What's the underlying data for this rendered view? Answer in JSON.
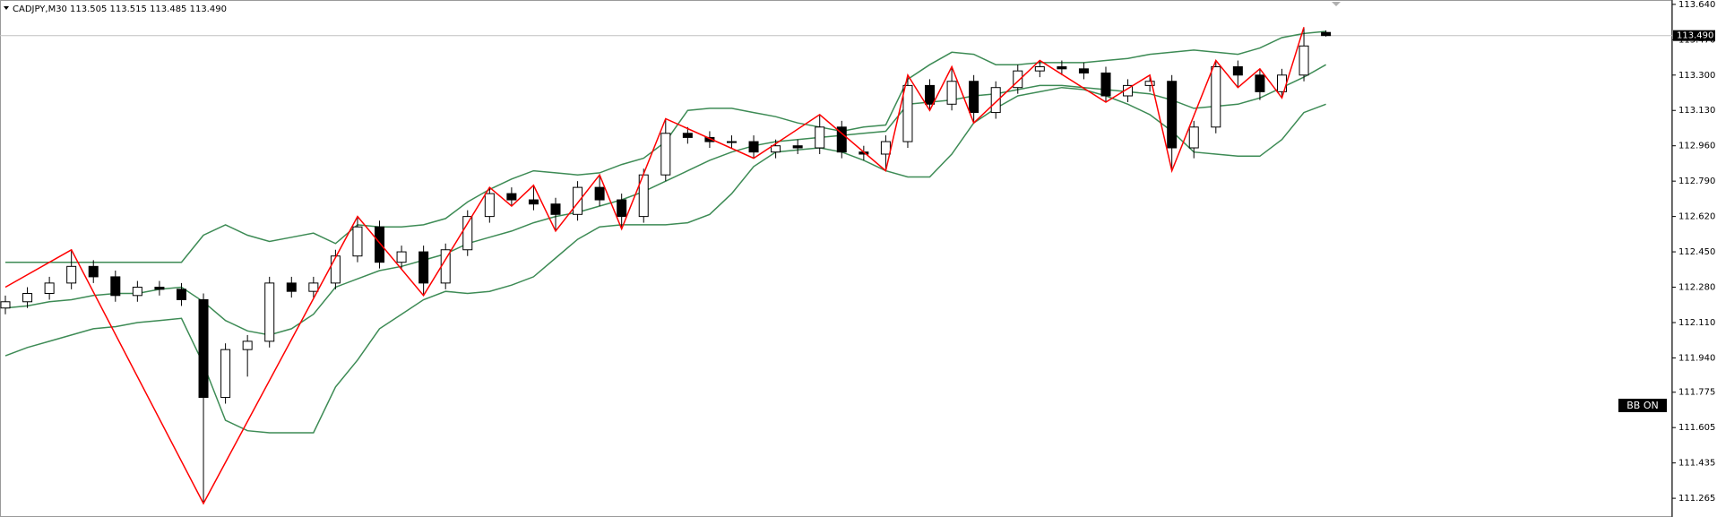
{
  "header": {
    "symbol": "CADJPY,M30",
    "quote": "113.505 113.515 113.485 113.490"
  },
  "chart_data": {
    "type": "candlestick",
    "open": [
      112.18,
      112.21,
      112.25,
      112.3,
      112.38,
      112.33,
      112.24,
      112.28,
      112.27,
      112.22,
      111.75,
      111.98,
      112.02,
      112.3,
      112.26,
      112.3,
      112.43,
      112.57,
      112.4,
      112.45,
      112.3,
      112.46,
      112.62,
      112.73,
      112.7,
      112.68,
      112.63,
      112.76,
      112.7,
      112.62,
      112.82,
      113.02,
      113.0,
      112.98,
      112.98,
      112.93,
      112.96,
      112.95,
      113.05,
      112.93,
      112.92,
      112.98,
      113.25,
      113.16,
      113.27,
      113.12,
      113.24,
      113.32,
      113.34,
      113.33,
      113.31,
      113.2,
      113.25,
      113.27,
      112.95,
      113.05,
      113.34,
      113.3,
      113.22,
      113.3,
      113.505
    ],
    "high": [
      112.24,
      112.28,
      112.33,
      112.46,
      112.41,
      112.36,
      112.31,
      112.31,
      112.3,
      112.25,
      112.01,
      112.05,
      112.33,
      112.33,
      112.33,
      112.46,
      112.62,
      112.6,
      112.48,
      112.48,
      112.49,
      112.65,
      112.76,
      112.76,
      112.77,
      112.71,
      112.79,
      112.82,
      112.73,
      112.85,
      113.09,
      113.05,
      113.03,
      113.01,
      113.01,
      112.99,
      112.99,
      113.11,
      113.08,
      112.96,
      113.01,
      113.3,
      113.28,
      113.34,
      113.3,
      113.27,
      113.35,
      113.37,
      113.37,
      113.36,
      113.34,
      113.28,
      113.3,
      113.3,
      113.08,
      113.37,
      113.37,
      113.33,
      113.33,
      113.53,
      113.515
    ],
    "low": [
      112.15,
      112.18,
      112.22,
      112.27,
      112.3,
      112.21,
      112.21,
      112.24,
      112.19,
      111.24,
      111.72,
      111.85,
      111.99,
      112.23,
      112.23,
      112.27,
      112.4,
      112.37,
      112.37,
      112.24,
      112.27,
      112.43,
      112.59,
      112.67,
      112.65,
      112.55,
      112.6,
      112.67,
      112.56,
      112.59,
      112.79,
      112.97,
      112.95,
      112.95,
      112.9,
      112.9,
      112.92,
      112.92,
      112.9,
      112.89,
      112.84,
      112.95,
      113.13,
      113.13,
      113.07,
      113.09,
      113.21,
      113.29,
      113.3,
      113.28,
      113.17,
      113.17,
      113.22,
      112.84,
      112.9,
      113.02,
      113.24,
      113.18,
      113.19,
      113.27,
      113.485
    ],
    "close": [
      112.21,
      112.25,
      112.3,
      112.38,
      112.33,
      112.24,
      112.28,
      112.27,
      112.22,
      111.75,
      111.98,
      112.02,
      112.3,
      112.26,
      112.3,
      112.43,
      112.57,
      112.4,
      112.45,
      112.3,
      112.46,
      112.62,
      112.73,
      112.7,
      112.68,
      112.63,
      112.76,
      112.7,
      112.62,
      112.82,
      113.02,
      113.0,
      112.98,
      112.98,
      112.93,
      112.96,
      112.95,
      113.05,
      112.93,
      112.92,
      112.98,
      113.25,
      113.16,
      113.27,
      113.12,
      113.24,
      113.32,
      113.34,
      113.33,
      113.31,
      113.2,
      113.25,
      113.27,
      112.95,
      113.05,
      113.34,
      113.3,
      113.22,
      113.3,
      113.44,
      113.49
    ],
    "candle_colors": {
      "up": "#ffffff",
      "down": "#000000",
      "outline": "#000000"
    },
    "bands": [
      {
        "color": "#3d8b55",
        "values": [
          112.4,
          112.4,
          112.4,
          112.4,
          112.4,
          112.4,
          112.4,
          112.4,
          112.4,
          112.53,
          112.58,
          112.53,
          112.5,
          112.52,
          112.54,
          112.49,
          112.58,
          112.57,
          112.57,
          112.58,
          112.61,
          112.69,
          112.75,
          112.8,
          112.84,
          112.83,
          112.82,
          112.83,
          112.87,
          112.9,
          112.98,
          113.13,
          113.14,
          113.14,
          113.12,
          113.1,
          113.07,
          113.05,
          113.03,
          113.05,
          113.06,
          113.28,
          113.35,
          113.41,
          113.4,
          113.35,
          113.35,
          113.36,
          113.36,
          113.36,
          113.37,
          113.38,
          113.4,
          113.41,
          113.42,
          113.41,
          113.4,
          113.43,
          113.48,
          113.5,
          113.51
        ]
      },
      {
        "color": "#3d8b55",
        "values": [
          112.18,
          112.19,
          112.21,
          112.22,
          112.24,
          112.25,
          112.25,
          112.27,
          112.28,
          112.21,
          112.12,
          112.07,
          112.05,
          112.08,
          112.15,
          112.28,
          112.32,
          112.36,
          112.38,
          112.41,
          112.44,
          112.49,
          112.52,
          112.55,
          112.59,
          112.62,
          112.64,
          112.67,
          112.7,
          112.74,
          112.79,
          112.84,
          112.89,
          112.93,
          112.96,
          112.98,
          112.99,
          113.0,
          113.01,
          113.02,
          113.03,
          113.16,
          113.17,
          113.18,
          113.2,
          113.21,
          113.23,
          113.25,
          113.25,
          113.24,
          113.23,
          113.22,
          113.21,
          113.18,
          113.14,
          113.15,
          113.16,
          113.19,
          113.24,
          113.29,
          113.35
        ]
      },
      {
        "color": "#3d8b55",
        "values": [
          111.95,
          111.99,
          112.02,
          112.05,
          112.08,
          112.09,
          112.11,
          112.12,
          112.13,
          111.91,
          111.64,
          111.59,
          111.58,
          111.58,
          111.58,
          111.8,
          111.93,
          112.08,
          112.15,
          112.22,
          112.26,
          112.25,
          112.26,
          112.29,
          112.33,
          112.42,
          112.51,
          112.57,
          112.58,
          112.58,
          112.58,
          112.59,
          112.63,
          112.73,
          112.86,
          112.93,
          112.94,
          112.95,
          112.93,
          112.89,
          112.84,
          112.81,
          112.81,
          112.92,
          113.07,
          113.14,
          113.2,
          113.22,
          113.24,
          113.23,
          113.2,
          113.16,
          113.11,
          113.03,
          112.93,
          112.92,
          112.91,
          112.91,
          112.99,
          113.12,
          113.16
        ]
      }
    ],
    "zigzag": {
      "color": "#ff0000",
      "x": [
        0,
        3,
        9,
        16,
        19,
        22,
        23,
        24,
        25,
        27,
        28,
        30,
        34,
        37,
        40,
        41,
        42,
        43,
        44,
        47,
        50,
        52,
        53,
        55,
        56,
        57,
        58,
        59
      ],
      "values": [
        112.28,
        112.46,
        111.24,
        112.62,
        112.24,
        112.76,
        112.67,
        112.77,
        112.55,
        112.82,
        112.56,
        113.09,
        112.9,
        113.11,
        112.84,
        113.3,
        113.13,
        113.34,
        113.07,
        113.37,
        113.17,
        113.3,
        112.84,
        113.37,
        113.24,
        113.33,
        113.19,
        113.53
      ]
    },
    "ylim": [
      111.175,
      113.661
    ],
    "yticks": [
      {
        "value": 113.64,
        "label": "113.640"
      },
      {
        "value": 113.47,
        "label": "113.470"
      },
      {
        "value": 113.3,
        "label": "113.300"
      },
      {
        "value": 113.13,
        "label": "113.130"
      },
      {
        "value": 112.96,
        "label": "112.960"
      },
      {
        "value": 112.79,
        "label": "112.790"
      },
      {
        "value": 112.62,
        "label": "112.620"
      },
      {
        "value": 112.45,
        "label": "112.450"
      },
      {
        "value": 112.28,
        "label": "112.280"
      },
      {
        "value": 112.11,
        "label": "112.110"
      },
      {
        "value": 111.94,
        "label": "111.940"
      },
      111.775,
      111.605,
      111.435,
      111.265
    ],
    "price_line": {
      "value": 113.49,
      "label": "113.490"
    },
    "indicator_label": "BB ON"
  }
}
